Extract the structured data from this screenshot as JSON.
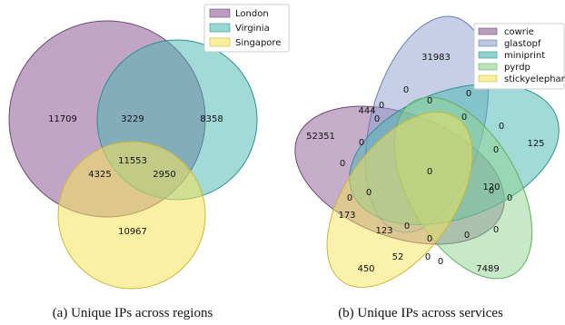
{
  "regions": {
    "legend": [
      {
        "name": "London",
        "color": "#8e5b96"
      },
      {
        "name": "Virginia",
        "color": "#45b6b2"
      },
      {
        "name": "Singapore",
        "color": "#f5e35a"
      }
    ],
    "counts": {
      "london_only": "11709",
      "virginia_only": "8358",
      "singapore_only": "10967",
      "london_virginia": "3229",
      "london_singapore": "4325",
      "virginia_singapore": "2950",
      "all_three": "11553"
    },
    "caption": "(a) Unique IPs across regions"
  },
  "services": {
    "legend": [
      {
        "name": "cowrie",
        "color": "#8e5b96"
      },
      {
        "name": "glastopf",
        "color": "#8f9fd0"
      },
      {
        "name": "miniprint",
        "color": "#45b6b2"
      },
      {
        "name": "pyrdp",
        "color": "#8fd48f"
      },
      {
        "name": "stickyelephant",
        "color": "#f5e35a"
      }
    ],
    "labels": [
      "31983",
      "52351",
      "125",
      "7489",
      "450",
      "444",
      "173",
      "123",
      "52",
      "120",
      "0"
    ],
    "caption": "(b) Unique IPs across services"
  }
}
